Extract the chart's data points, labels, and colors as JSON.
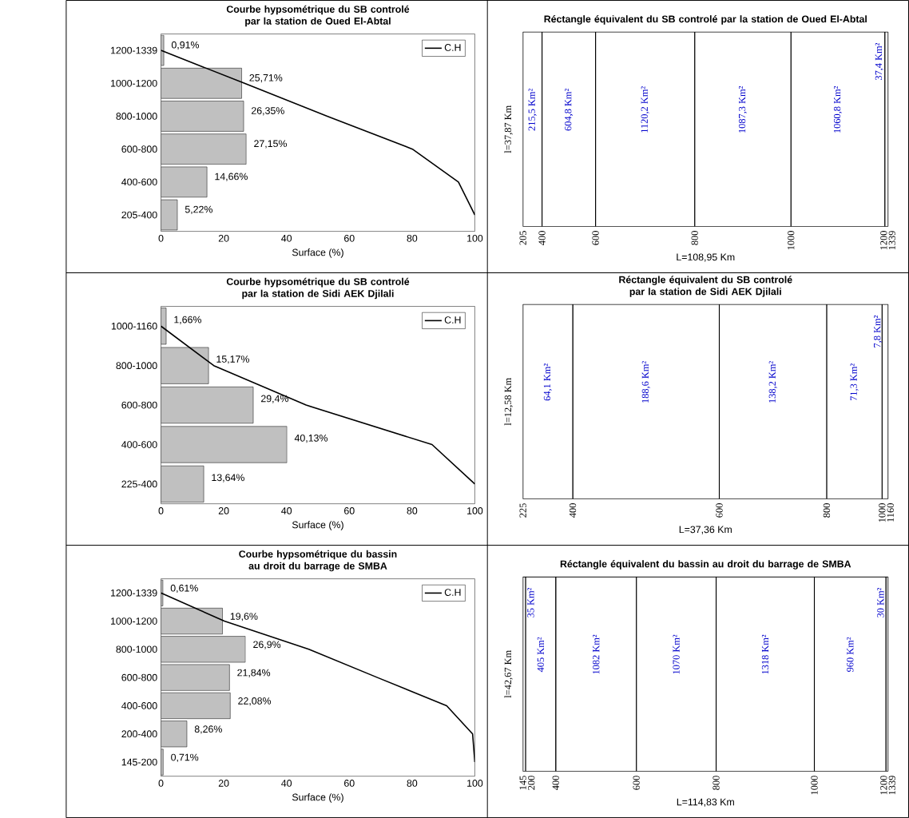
{
  "chart_data": [
    {
      "type": "bar",
      "orientation": "horizontal",
      "title": "Courbe hypsométrique du SB controlé par la station de Oued El-Abtal",
      "xlabel": "Surface (%)",
      "categories": [
        "1200-1339",
        "1000-1200",
        "800-1000",
        "600-800",
        "400-600",
        "205-400"
      ],
      "xlim": [
        0,
        100
      ],
      "xticks": [
        0,
        20,
        40,
        60,
        80,
        100
      ],
      "legend": "top right",
      "series": [
        {
          "type": "bar",
          "color": "#c0c0c0",
          "values": [
            0.91,
            25.71,
            26.35,
            27.15,
            14.66,
            5.22
          ],
          "value_labels": [
            "0,91%",
            "25,71%",
            "26,35%",
            "27,15%",
            "14,66%",
            "5,22%"
          ]
        },
        {
          "type": "line",
          "name": "C.H",
          "color": "#000000",
          "values": [
            0,
            26.62,
            52.97,
            80.12,
            94.78,
            100
          ]
        }
      ]
    },
    {
      "type": "bar",
      "orientation": "horizontal",
      "stacked": true,
      "title": "Réctangle équivalent du SB controlé par la station de Oued El-Abtal",
      "xlabel": "L=108,95 Km",
      "ylabel": "l=37,87 Km",
      "categories": [
        null
      ],
      "annotations": [
        "205",
        "400",
        "600",
        "800",
        "1000",
        "1200",
        "1339"
      ],
      "series": [
        {
          "color": "#ffffff",
          "values": [
            215.5
          ],
          "value_labels": [
            "215,5 Km²"
          ]
        },
        {
          "color": "#ffffff",
          "values": [
            604.8
          ],
          "value_labels": [
            "604,8 Km²"
          ]
        },
        {
          "color": "#ffffff",
          "values": [
            1120.2
          ],
          "value_labels": [
            "1120,2 Km²"
          ]
        },
        {
          "color": "#ffffff",
          "values": [
            1087.3
          ],
          "value_labels": [
            "1087,3 Km²"
          ]
        },
        {
          "color": "#ffffff",
          "values": [
            1060.8
          ],
          "value_labels": [
            "1060,8 Km²"
          ]
        },
        {
          "color": "#ffffff",
          "values": [
            37.4
          ],
          "value_labels": [
            "37,4 Km²"
          ]
        }
      ]
    },
    {
      "type": "bar",
      "orientation": "horizontal",
      "title": "Courbe hypsométrique du SB controlé par la station de Sidi AEK Djilali",
      "xlabel": "Surface (%)",
      "categories": [
        "1000-1160",
        "800-1000",
        "600-800",
        "400-600",
        "225-400"
      ],
      "xlim": [
        0,
        100
      ],
      "xticks": [
        0,
        20,
        40,
        60,
        80,
        100
      ],
      "legend": "top right",
      "series": [
        {
          "type": "bar",
          "color": "#c0c0c0",
          "values": [
            1.66,
            15.17,
            29.4,
            40.13,
            13.64
          ],
          "value_labels": [
            "1,66%",
            "15,17%",
            "29,4%",
            "40,13%",
            "13,64%"
          ]
        },
        {
          "type": "line",
          "name": "C.H",
          "color": "#000000",
          "values": [
            0,
            16.83,
            46.23,
            86.36,
            100
          ]
        }
      ]
    },
    {
      "type": "bar",
      "orientation": "horizontal",
      "stacked": true,
      "title": "Réctangle équivalent du SB controlé par la station de Sidi AEK Djilali",
      "xlabel": "L=37,36 Km",
      "ylabel": "l=12,58 Km",
      "categories": [
        null
      ],
      "annotations": [
        "225",
        "400",
        "600",
        "800",
        "1000",
        "1160"
      ],
      "series": [
        {
          "color": "#ffffff",
          "values": [
            64.1
          ],
          "value_labels": [
            "64,1 Km²"
          ]
        },
        {
          "color": "#ffffff",
          "values": [
            188.6
          ],
          "value_labels": [
            "188,6 Km²"
          ]
        },
        {
          "color": "#ffffff",
          "values": [
            138.2
          ],
          "value_labels": [
            "138,2 Km²"
          ]
        },
        {
          "color": "#ffffff",
          "values": [
            71.3
          ],
          "value_labels": [
            "71,3 Km²"
          ]
        },
        {
          "color": "#ffffff",
          "values": [
            7.8
          ],
          "value_labels": [
            "7,8 Km²"
          ]
        }
      ]
    },
    {
      "type": "bar",
      "orientation": "horizontal",
      "title": "Courbe hypsométrique du bassin au droit du barrage de SMBA",
      "xlabel": "Surface (%)",
      "categories": [
        "1200-1339",
        "1000-1200",
        "800-1000",
        "600-800",
        "400-600",
        "200-400",
        "145-200"
      ],
      "xlim": [
        0,
        100
      ],
      "xticks": [
        0,
        20,
        40,
        60,
        80,
        100
      ],
      "legend": "top right",
      "series": [
        {
          "type": "bar",
          "color": "#c0c0c0",
          "values": [
            0.61,
            19.6,
            26.9,
            21.84,
            22.08,
            8.26,
            0.71
          ],
          "value_labels": [
            "0,61%",
            "19,6%",
            "26,9%",
            "21,84%",
            "22,08%",
            "8,26%",
            "0,71%"
          ]
        },
        {
          "type": "line",
          "name": "C.H",
          "color": "#000000",
          "values": [
            0,
            20.21,
            47.11,
            68.95,
            91.03,
            99.29,
            100
          ]
        }
      ]
    },
    {
      "type": "bar",
      "orientation": "horizontal",
      "stacked": true,
      "title": "Réctangle équivalent du bassin au droit du barrage de SMBA",
      "xlabel": "L=114,83 Km",
      "ylabel": "l=42,67 Km",
      "categories": [
        null
      ],
      "annotations": [
        "145",
        "200",
        "400",
        "600",
        "800",
        "1000",
        "1200",
        "1339"
      ],
      "series": [
        {
          "color": "#ffffff",
          "values": [
            35
          ],
          "value_labels": [
            "35 Km²"
          ]
        },
        {
          "color": "#ffffff",
          "values": [
            405
          ],
          "value_labels": [
            "405 Km²"
          ]
        },
        {
          "color": "#ffffff",
          "values": [
            1082
          ],
          "value_labels": [
            "1082 Km²"
          ]
        },
        {
          "color": "#ffffff",
          "values": [
            1070
          ],
          "value_labels": [
            "1070 Km²"
          ]
        },
        {
          "color": "#ffffff",
          "values": [
            1318
          ],
          "value_labels": [
            "1318 Km²"
          ]
        },
        {
          "color": "#ffffff",
          "values": [
            960
          ],
          "value_labels": [
            "960 Km²"
          ]
        },
        {
          "color": "#ffffff",
          "values": [
            30
          ],
          "value_labels": [
            "30 Km²"
          ]
        }
      ]
    }
  ]
}
